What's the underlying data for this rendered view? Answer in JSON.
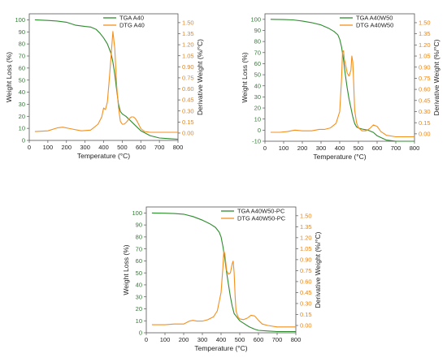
{
  "chart_data": [
    {
      "type": "line",
      "xlabel": "Temperature (°C)",
      "ylabel": "Weight Loss (%)",
      "y2label": "Derivative Weight (%/°C)",
      "xlim": [
        0,
        800
      ],
      "ylim": [
        0,
        105
      ],
      "y2lim": [
        -0.1,
        1.62
      ],
      "xticks": [
        "0",
        "100",
        "200",
        "300",
        "400",
        "500",
        "600",
        "700",
        "800"
      ],
      "yticks": [
        "0",
        "10",
        "20",
        "30",
        "40",
        "50",
        "60",
        "70",
        "80",
        "90",
        "100"
      ],
      "y2ticks": [
        "0.00",
        "0.15",
        "0.30",
        "0.45",
        "0.60",
        "0.75",
        "0.90",
        "1.05",
        "1.20",
        "1.35",
        "1.50"
      ],
      "legend_position": "top-right",
      "grid": false,
      "series": [
        {
          "name": "TGA A40",
          "axis": "left",
          "color": "#2e8b2e",
          "x": [
            30,
            100,
            150,
            200,
            250,
            300,
            330,
            360,
            380,
            400,
            420,
            440,
            450,
            460,
            470,
            480,
            490,
            500,
            520,
            540,
            560,
            580,
            600,
            650,
            700,
            750,
            800
          ],
          "y": [
            100,
            99.5,
            99,
            98,
            95.5,
            94.5,
            94,
            92,
            89,
            85,
            80,
            72,
            65,
            55,
            42,
            30,
            24,
            22,
            20,
            17,
            14,
            11,
            8,
            4,
            2,
            1.5,
            1
          ]
        },
        {
          "name": "DTG A40",
          "axis": "right",
          "color": "#f4901e",
          "x": [
            30,
            100,
            150,
            180,
            220,
            280,
            330,
            370,
            390,
            400,
            410,
            420,
            430,
            440,
            450,
            460,
            470,
            480,
            490,
            500,
            510,
            520,
            530,
            540,
            550,
            560,
            570,
            580,
            600,
            620,
            650,
            700,
            750,
            800
          ],
          "y": [
            0.02,
            0.03,
            0.07,
            0.08,
            0.06,
            0.03,
            0.04,
            0.12,
            0.22,
            0.34,
            0.32,
            0.42,
            0.72,
            1.05,
            1.38,
            1.15,
            0.65,
            0.35,
            0.16,
            0.12,
            0.12,
            0.14,
            0.17,
            0.2,
            0.22,
            0.22,
            0.2,
            0.16,
            0.06,
            0.02,
            0.01,
            0.01,
            0.01,
            0.01
          ]
        }
      ]
    },
    {
      "type": "line",
      "xlabel": "Temperature (°C)",
      "ylabel": "Weight Loss (%)",
      "y2label": "Derivative Weight (%/°C)",
      "xlim": [
        0,
        800
      ],
      "ylim": [
        -10,
        105
      ],
      "y2lim": [
        -0.1,
        1.62
      ],
      "xticks": [
        "0",
        "100",
        "200",
        "300",
        "400",
        "500",
        "600",
        "700",
        "800"
      ],
      "yticks": [
        "-10",
        "0",
        "10",
        "20",
        "30",
        "40",
        "50",
        "60",
        "70",
        "80",
        "90",
        "100"
      ],
      "y2ticks": [
        "0.00",
        "0.15",
        "0.30",
        "0.45",
        "0.60",
        "0.75",
        "0.90",
        "1.05",
        "1.20",
        "1.35",
        "1.50"
      ],
      "legend_position": "top-right",
      "grid": false,
      "series": [
        {
          "name": "TGA A40W50",
          "axis": "left",
          "color": "#2e8b2e",
          "x": [
            30,
            100,
            150,
            200,
            250,
            300,
            340,
            370,
            390,
            400,
            410,
            420,
            430,
            440,
            450,
            460,
            470,
            480,
            490,
            500,
            520,
            550,
            580,
            600,
            650,
            700,
            800
          ],
          "y": [
            100,
            99.8,
            99.5,
            98.5,
            97,
            95,
            92,
            89,
            86,
            82,
            75,
            64,
            50,
            38,
            28,
            20,
            12,
            6,
            3,
            2,
            1,
            0,
            -2,
            -5,
            -9,
            -10,
            -10
          ]
        },
        {
          "name": "DTG A40W50",
          "axis": "right",
          "color": "#f4901e",
          "x": [
            30,
            80,
            120,
            160,
            200,
            250,
            290,
            320,
            350,
            380,
            400,
            410,
            415,
            420,
            425,
            430,
            440,
            450,
            460,
            465,
            470,
            475,
            480,
            490,
            500,
            520,
            540,
            560,
            580,
            600,
            620,
            650,
            700,
            800
          ],
          "y": [
            0.02,
            0.02,
            0.03,
            0.05,
            0.04,
            0.04,
            0.06,
            0.06,
            0.08,
            0.14,
            0.3,
            0.75,
            1.1,
            1.12,
            1.0,
            0.95,
            0.82,
            0.78,
            0.86,
            1.05,
            0.97,
            0.65,
            0.32,
            0.15,
            0.08,
            0.04,
            0.04,
            0.07,
            0.12,
            0.1,
            0.03,
            -0.02,
            -0.04,
            -0.04
          ]
        }
      ]
    },
    {
      "type": "line",
      "xlabel": "Temperature (°C)",
      "ylabel": "Weight Loss (%)",
      "y2label": "Derivative Weight (%/°C)",
      "xlim": [
        0,
        800
      ],
      "ylim": [
        0,
        105
      ],
      "y2lim": [
        -0.1,
        1.62
      ],
      "xticks": [
        "0",
        "100",
        "200",
        "300",
        "400",
        "500",
        "600",
        "700",
        "800"
      ],
      "yticks": [
        "0",
        "10",
        "20",
        "30",
        "40",
        "50",
        "60",
        "70",
        "80",
        "90",
        "100"
      ],
      "y2ticks": [
        "0.00",
        "0.15",
        "0.30",
        "0.45",
        "0.60",
        "0.75",
        "0.90",
        "1.05",
        "1.20",
        "1.35",
        "1.50"
      ],
      "legend_position": "top-right",
      "grid": false,
      "series": [
        {
          "name": "TGA A40W50-PC",
          "axis": "left",
          "color": "#2e8b2e",
          "x": [
            30,
            100,
            150,
            200,
            250,
            300,
            340,
            370,
            390,
            400,
            410,
            420,
            430,
            440,
            450,
            460,
            470,
            480,
            490,
            500,
            520,
            550,
            580,
            600,
            650,
            700,
            800
          ],
          "y": [
            100,
            99.8,
            99.5,
            99,
            97,
            94,
            91,
            88,
            84,
            80,
            72,
            62,
            50,
            40,
            30,
            22,
            16,
            14,
            12,
            10,
            8,
            5,
            3,
            2,
            1.5,
            1,
            1
          ]
        },
        {
          "name": "DTG A40W50-PC",
          "axis": "right",
          "color": "#f4901e",
          "x": [
            30,
            100,
            150,
            200,
            230,
            250,
            270,
            300,
            330,
            360,
            380,
            400,
            410,
            415,
            420,
            430,
            440,
            450,
            460,
            465,
            470,
            475,
            480,
            490,
            500,
            520,
            540,
            560,
            580,
            600,
            620,
            650,
            700,
            800
          ],
          "y": [
            0.01,
            0.01,
            0.02,
            0.02,
            0.06,
            0.07,
            0.06,
            0.06,
            0.08,
            0.12,
            0.2,
            0.45,
            0.8,
            1.02,
            0.98,
            0.75,
            0.7,
            0.72,
            0.85,
            0.88,
            0.72,
            0.4,
            0.2,
            0.12,
            0.09,
            0.08,
            0.1,
            0.14,
            0.13,
            0.07,
            0.02,
            0.0,
            -0.02,
            -0.02
          ]
        }
      ]
    }
  ]
}
